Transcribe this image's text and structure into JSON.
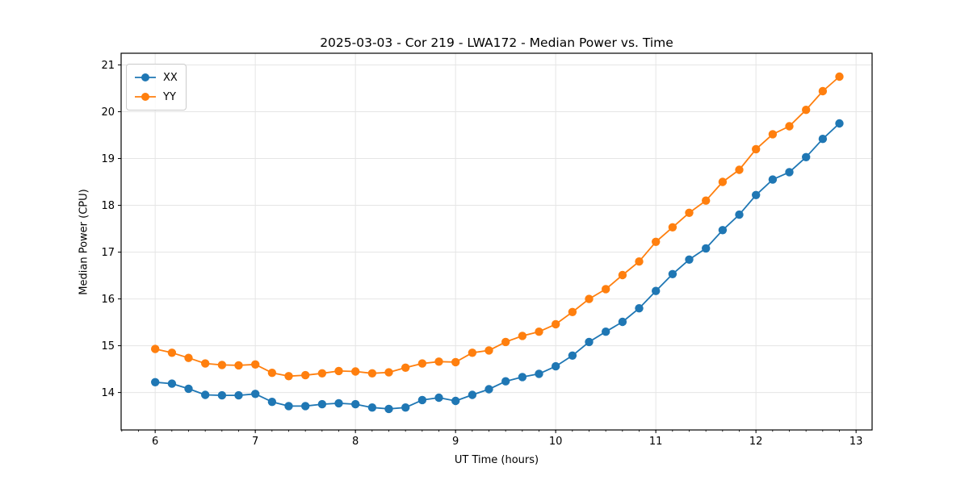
{
  "chart_data": {
    "type": "line",
    "title": "2025-03-03 - Cor 219 - LWA172 - Median Power vs. Time",
    "xlabel": "UT Time (hours)",
    "ylabel": "Median Power (CPU)",
    "xlim": [
      5.66,
      13.16
    ],
    "ylim": [
      13.2,
      21.25
    ],
    "x_ticks": [
      6,
      7,
      8,
      9,
      10,
      11,
      12,
      13
    ],
    "y_ticks": [
      14,
      15,
      16,
      17,
      18,
      19,
      20,
      21
    ],
    "x_minor_step_hours": 0.1666667,
    "grid": true,
    "grid_color": "#e5e5e5",
    "legend_position": "upper left",
    "x": [
      6.0,
      6.167,
      6.333,
      6.5,
      6.667,
      6.833,
      7.0,
      7.167,
      7.333,
      7.5,
      7.667,
      7.833,
      8.0,
      8.167,
      8.333,
      8.5,
      8.667,
      8.833,
      9.0,
      9.167,
      9.333,
      9.5,
      9.667,
      9.833,
      10.0,
      10.167,
      10.333,
      10.5,
      10.667,
      10.833,
      11.0,
      11.167,
      11.333,
      11.5,
      11.667,
      11.833,
      12.0,
      12.167,
      12.333,
      12.5,
      12.667,
      12.833
    ],
    "series": [
      {
        "name": "XX",
        "color": "#1f77b4",
        "values": [
          14.22,
          14.19,
          14.08,
          13.95,
          13.94,
          13.94,
          13.97,
          13.8,
          13.71,
          13.71,
          13.75,
          13.77,
          13.75,
          13.68,
          13.65,
          13.68,
          13.84,
          13.89,
          13.82,
          13.95,
          14.07,
          14.24,
          14.33,
          14.4,
          14.56,
          14.79,
          15.08,
          15.3,
          15.51,
          15.8,
          16.17,
          16.53,
          16.84,
          17.08,
          17.47,
          17.8,
          18.22,
          18.55,
          18.71,
          19.03,
          19.42,
          19.75
        ]
      },
      {
        "name": "YY",
        "color": "#ff7f0e",
        "values": [
          14.93,
          14.85,
          14.74,
          14.62,
          14.59,
          14.58,
          14.6,
          14.42,
          14.35,
          14.37,
          14.41,
          14.46,
          14.45,
          14.41,
          14.43,
          14.53,
          14.62,
          14.66,
          14.65,
          14.85,
          14.9,
          15.08,
          15.21,
          15.3,
          15.46,
          15.72,
          16.0,
          16.21,
          16.51,
          16.8,
          17.22,
          17.53,
          17.84,
          18.1,
          18.5,
          18.76,
          19.2,
          19.52,
          19.69,
          20.04,
          20.44,
          20.75
        ]
      }
    ]
  }
}
